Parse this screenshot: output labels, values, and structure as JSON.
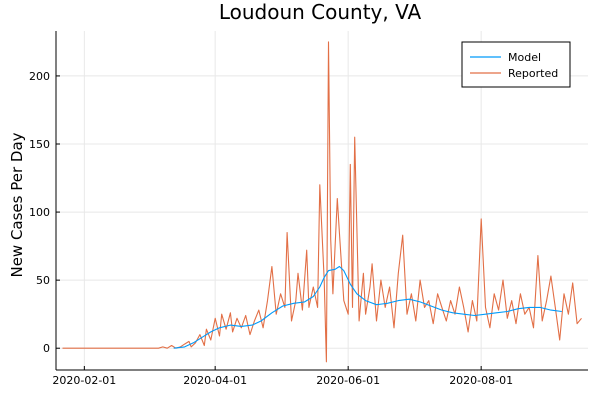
{
  "chart_data": {
    "type": "line",
    "title": "Loudoun County, VA",
    "xlabel": "",
    "ylabel": "New Cases Per Day",
    "x_ticks": [
      "2020-02-01",
      "2020-04-01",
      "2020-06-01",
      "2020-08-01"
    ],
    "y_ticks": [
      0,
      50,
      100,
      150,
      200
    ],
    "xlim": [
      "2020-01-19",
      "2020-09-19"
    ],
    "ylim": [
      -16,
      233
    ],
    "grid": true,
    "legend": "top-right",
    "series": [
      {
        "name": "Model",
        "color": "#009AFA",
        "points": [
          [
            "2020-03-13",
            0
          ],
          [
            "2020-03-18",
            1
          ],
          [
            "2020-03-22",
            4
          ],
          [
            "2020-03-26",
            8
          ],
          [
            "2020-03-30",
            12
          ],
          [
            "2020-04-03",
            15
          ],
          [
            "2020-04-08",
            17
          ],
          [
            "2020-04-13",
            16
          ],
          [
            "2020-04-18",
            17
          ],
          [
            "2020-04-22",
            20
          ],
          [
            "2020-04-27",
            26
          ],
          [
            "2020-05-02",
            31
          ],
          [
            "2020-05-07",
            33
          ],
          [
            "2020-05-12",
            34
          ],
          [
            "2020-05-16",
            38
          ],
          [
            "2020-05-19",
            45
          ],
          [
            "2020-05-21",
            52
          ],
          [
            "2020-05-23",
            57
          ],
          [
            "2020-05-26",
            58
          ],
          [
            "2020-05-28",
            60
          ],
          [
            "2020-05-30",
            57
          ],
          [
            "2020-06-02",
            47
          ],
          [
            "2020-06-05",
            40
          ],
          [
            "2020-06-09",
            35
          ],
          [
            "2020-06-14",
            32
          ],
          [
            "2020-06-19",
            33
          ],
          [
            "2020-06-24",
            35
          ],
          [
            "2020-06-29",
            36
          ],
          [
            "2020-07-04",
            34
          ],
          [
            "2020-07-09",
            31
          ],
          [
            "2020-07-14",
            28
          ],
          [
            "2020-07-19",
            26
          ],
          [
            "2020-07-24",
            25
          ],
          [
            "2020-07-29",
            24
          ],
          [
            "2020-08-03",
            25
          ],
          [
            "2020-08-08",
            26
          ],
          [
            "2020-08-13",
            27
          ],
          [
            "2020-08-18",
            29
          ],
          [
            "2020-08-23",
            30
          ],
          [
            "2020-08-28",
            30
          ],
          [
            "2020-09-02",
            28
          ],
          [
            "2020-09-07",
            27
          ]
        ]
      },
      {
        "name": "Reported",
        "color": "#E26F46",
        "points": [
          [
            "2020-01-22",
            0
          ],
          [
            "2020-03-06",
            0
          ],
          [
            "2020-03-08",
            1
          ],
          [
            "2020-03-10",
            0
          ],
          [
            "2020-03-12",
            2
          ],
          [
            "2020-03-14",
            0
          ],
          [
            "2020-03-16",
            1
          ],
          [
            "2020-03-18",
            3
          ],
          [
            "2020-03-20",
            5
          ],
          [
            "2020-03-21",
            1
          ],
          [
            "2020-03-23",
            4
          ],
          [
            "2020-03-25",
            10
          ],
          [
            "2020-03-27",
            2
          ],
          [
            "2020-03-28",
            14
          ],
          [
            "2020-03-30",
            6
          ],
          [
            "2020-04-01",
            22
          ],
          [
            "2020-04-03",
            9
          ],
          [
            "2020-04-04",
            25
          ],
          [
            "2020-04-06",
            14
          ],
          [
            "2020-04-08",
            26
          ],
          [
            "2020-04-09",
            12
          ],
          [
            "2020-04-11",
            22
          ],
          [
            "2020-04-13",
            15
          ],
          [
            "2020-04-15",
            24
          ],
          [
            "2020-04-17",
            10
          ],
          [
            "2020-04-19",
            20
          ],
          [
            "2020-04-21",
            28
          ],
          [
            "2020-04-23",
            15
          ],
          [
            "2020-04-25",
            35
          ],
          [
            "2020-04-27",
            60
          ],
          [
            "2020-04-29",
            25
          ],
          [
            "2020-05-01",
            40
          ],
          [
            "2020-05-03",
            30
          ],
          [
            "2020-05-04",
            85
          ],
          [
            "2020-05-06",
            20
          ],
          [
            "2020-05-08",
            35
          ],
          [
            "2020-05-09",
            55
          ],
          [
            "2020-05-11",
            28
          ],
          [
            "2020-05-13",
            72
          ],
          [
            "2020-05-14",
            30
          ],
          [
            "2020-05-16",
            45
          ],
          [
            "2020-05-18",
            30
          ],
          [
            "2020-05-19",
            120
          ],
          [
            "2020-05-21",
            50
          ],
          [
            "2020-05-22",
            -10
          ],
          [
            "2020-05-23",
            225
          ],
          [
            "2020-05-24",
            80
          ],
          [
            "2020-05-25",
            40
          ],
          [
            "2020-05-27",
            110
          ],
          [
            "2020-05-28",
            85
          ],
          [
            "2020-05-30",
            35
          ],
          [
            "2020-06-01",
            25
          ],
          [
            "2020-06-02",
            135
          ],
          [
            "2020-06-03",
            30
          ],
          [
            "2020-06-04",
            155
          ],
          [
            "2020-06-06",
            20
          ],
          [
            "2020-06-08",
            55
          ],
          [
            "2020-06-09",
            25
          ],
          [
            "2020-06-11",
            45
          ],
          [
            "2020-06-12",
            62
          ],
          [
            "2020-06-14",
            20
          ],
          [
            "2020-06-16",
            50
          ],
          [
            "2020-06-18",
            30
          ],
          [
            "2020-06-20",
            45
          ],
          [
            "2020-06-22",
            15
          ],
          [
            "2020-06-24",
            55
          ],
          [
            "2020-06-26",
            83
          ],
          [
            "2020-06-28",
            25
          ],
          [
            "2020-06-30",
            40
          ],
          [
            "2020-07-02",
            20
          ],
          [
            "2020-07-04",
            50
          ],
          [
            "2020-07-06",
            30
          ],
          [
            "2020-07-08",
            35
          ],
          [
            "2020-07-10",
            18
          ],
          [
            "2020-07-12",
            40
          ],
          [
            "2020-07-14",
            30
          ],
          [
            "2020-07-16",
            20
          ],
          [
            "2020-07-18",
            35
          ],
          [
            "2020-07-20",
            25
          ],
          [
            "2020-07-22",
            45
          ],
          [
            "2020-07-24",
            30
          ],
          [
            "2020-07-26",
            12
          ],
          [
            "2020-07-28",
            35
          ],
          [
            "2020-07-30",
            20
          ],
          [
            "2020-08-01",
            95
          ],
          [
            "2020-08-03",
            30
          ],
          [
            "2020-08-05",
            15
          ],
          [
            "2020-08-07",
            40
          ],
          [
            "2020-08-09",
            28
          ],
          [
            "2020-08-11",
            50
          ],
          [
            "2020-08-13",
            22
          ],
          [
            "2020-08-15",
            35
          ],
          [
            "2020-08-17",
            18
          ],
          [
            "2020-08-19",
            40
          ],
          [
            "2020-08-21",
            25
          ],
          [
            "2020-08-23",
            30
          ],
          [
            "2020-08-25",
            15
          ],
          [
            "2020-08-27",
            68
          ],
          [
            "2020-08-29",
            20
          ],
          [
            "2020-08-31",
            35
          ],
          [
            "2020-09-02",
            53
          ],
          [
            "2020-09-04",
            30
          ],
          [
            "2020-09-06",
            6
          ],
          [
            "2020-09-08",
            40
          ],
          [
            "2020-09-10",
            25
          ],
          [
            "2020-09-12",
            48
          ],
          [
            "2020-09-14",
            18
          ],
          [
            "2020-09-16",
            22
          ]
        ]
      }
    ]
  }
}
